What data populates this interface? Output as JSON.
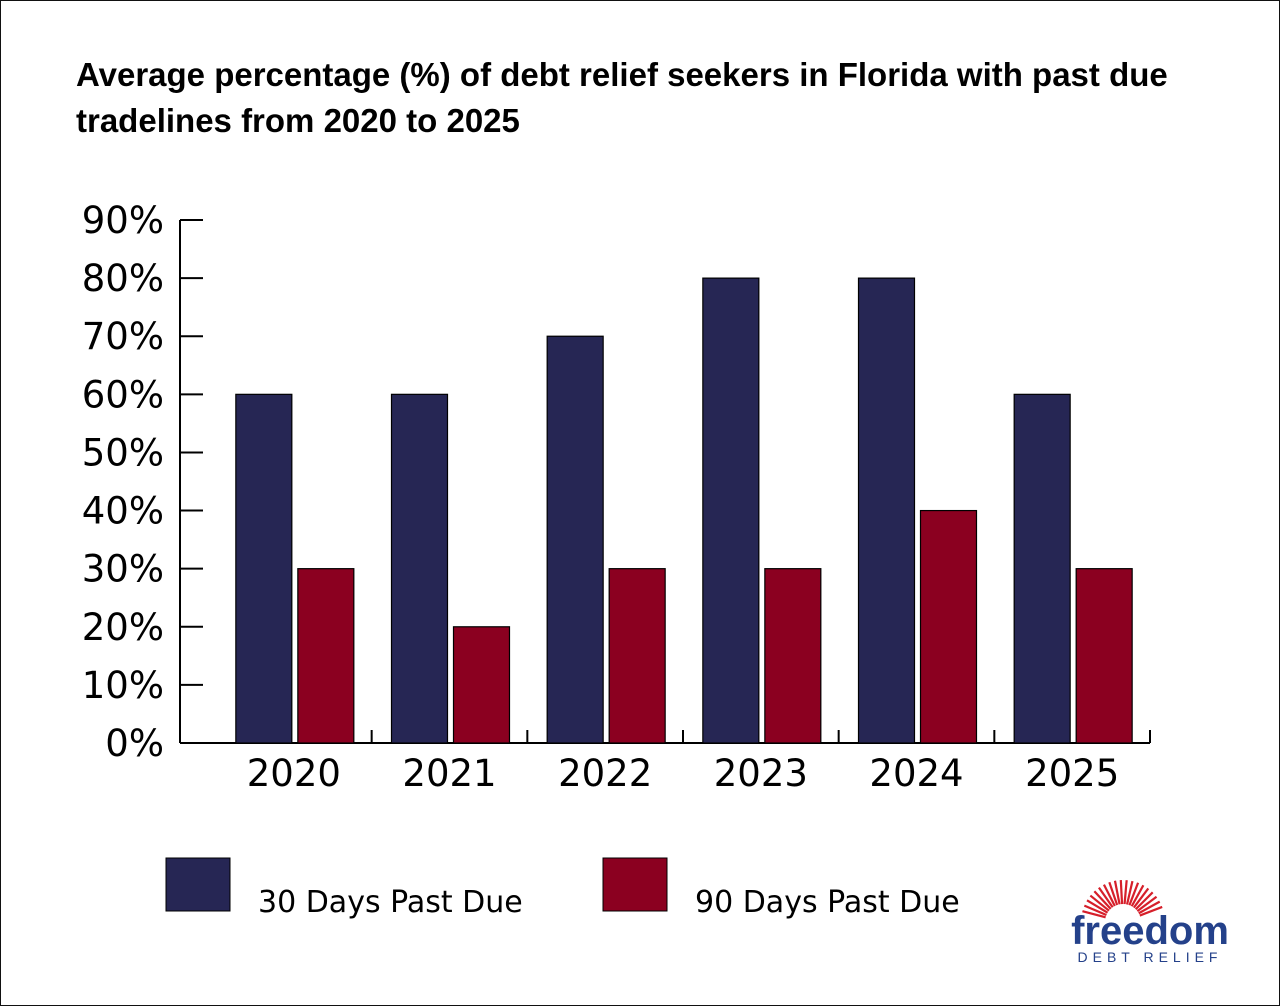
{
  "chart_data": {
    "type": "bar",
    "title": "Average percentage (%) of debt relief seekers in Florida with past due tradelines from 2020 to 2025",
    "xlabel": "",
    "ylabel": "",
    "categories": [
      "2020",
      "2021",
      "2022",
      "2023",
      "2024",
      "2025"
    ],
    "series": [
      {
        "name": "30 Days Past Due",
        "color": "#262654",
        "values": [
          60,
          60,
          70,
          80,
          80,
          60
        ]
      },
      {
        "name": "90 Days Past Due",
        "color": "#8b0020",
        "values": [
          30,
          20,
          30,
          30,
          40,
          30
        ]
      }
    ],
    "ylim": [
      0,
      90
    ],
    "yticks": [
      0,
      10,
      20,
      30,
      40,
      50,
      60,
      70,
      80,
      90
    ],
    "ytick_suffix": "%",
    "grid": false,
    "legend": {
      "placement": "bottom-left"
    }
  },
  "logo": {
    "brand": "freedom",
    "tagline": "DEBT RELIEF",
    "icon": "sunburst-icon",
    "color": "#24418a",
    "ray_color": "#d61f2a"
  }
}
